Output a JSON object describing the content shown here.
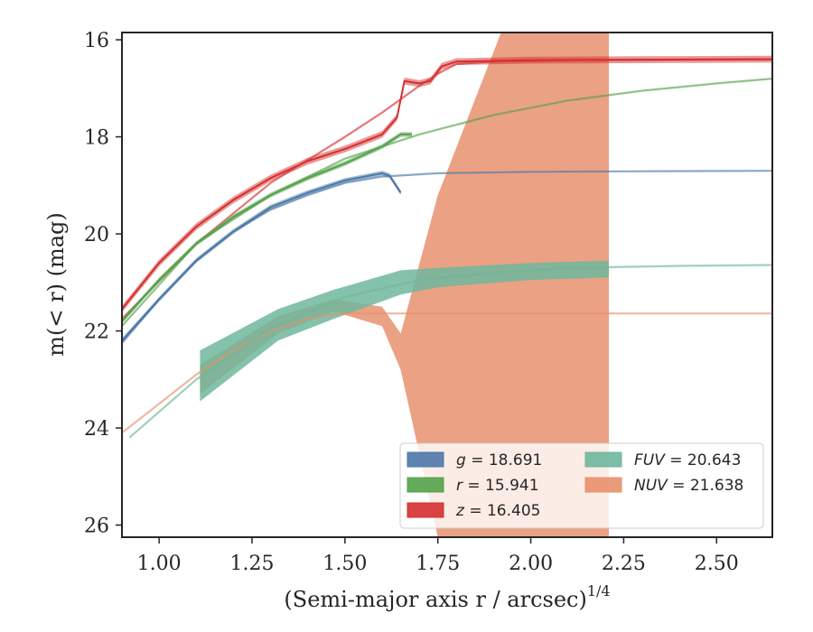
{
  "chart_data": {
    "type": "line",
    "title": "",
    "xlabel": "(Semi-major axis r / arcsec)",
    "xlabel_superscript": "1/4",
    "ylabel": "m(< r) (mag)",
    "xlim": [
      0.9,
      2.65
    ],
    "ylim": [
      26.25,
      15.85
    ],
    "y_inverted": true,
    "grid": false,
    "legend_position": "lower-right",
    "x_ticks": [
      "1.00",
      "1.25",
      "1.50",
      "1.75",
      "2.00",
      "2.25",
      "2.50"
    ],
    "x_tick_values": [
      1.0,
      1.25,
      1.5,
      1.75,
      2.0,
      2.25,
      2.5
    ],
    "y_ticks": [
      "16",
      "18",
      "20",
      "22",
      "24",
      "26"
    ],
    "y_tick_values": [
      16,
      18,
      20,
      22,
      24,
      26
    ],
    "legend": [
      {
        "band": "g",
        "value": "18.691",
        "color": "#4c78a8"
      },
      {
        "band": "r",
        "value": "15.941",
        "color": "#54a24b"
      },
      {
        "band": "z",
        "value": "16.405",
        "color": "#d62f2f"
      },
      {
        "band": "FUV",
        "value": "20.643",
        "color": "#6fb79c"
      },
      {
        "band": "NUV",
        "value": "21.638",
        "color": "#e8906d"
      }
    ],
    "series": [
      {
        "name": "g",
        "color": "#4c78a8",
        "kind": "profile",
        "band_width": 0.05,
        "x": [
          0.9,
          1.0,
          1.1,
          1.2,
          1.3,
          1.4,
          1.5,
          1.6,
          1.62,
          1.65
        ],
        "y": [
          22.2,
          21.35,
          20.55,
          19.95,
          19.45,
          19.15,
          18.9,
          18.75,
          18.8,
          19.15
        ]
      },
      {
        "name": "g model",
        "color": "#4c78a8",
        "kind": "model",
        "x": [
          0.9,
          1.0,
          1.1,
          1.2,
          1.3,
          1.4,
          1.5,
          1.6,
          1.75,
          2.0,
          2.3,
          2.65
        ],
        "y": [
          22.25,
          21.35,
          20.55,
          19.95,
          19.5,
          19.2,
          18.95,
          18.82,
          18.75,
          18.72,
          18.71,
          18.7
        ]
      },
      {
        "name": "r",
        "color": "#54a24b",
        "kind": "profile",
        "band_width": 0.05,
        "x": [
          0.9,
          1.0,
          1.1,
          1.2,
          1.3,
          1.4,
          1.5,
          1.6,
          1.65,
          1.68
        ],
        "y": [
          21.8,
          20.95,
          20.2,
          19.65,
          19.2,
          18.85,
          18.55,
          18.2,
          17.95,
          17.95
        ]
      },
      {
        "name": "r model",
        "color": "#54a24b",
        "kind": "model",
        "x": [
          0.9,
          1.1,
          1.3,
          1.5,
          1.7,
          1.9,
          2.1,
          2.3,
          2.5,
          2.65
        ],
        "y": [
          21.9,
          20.2,
          19.2,
          18.45,
          17.95,
          17.55,
          17.25,
          17.05,
          16.9,
          16.8
        ]
      },
      {
        "name": "z",
        "color": "#d62f2f",
        "kind": "profile",
        "band_width": 0.07,
        "x": [
          0.9,
          1.0,
          1.1,
          1.2,
          1.3,
          1.4,
          1.5,
          1.6,
          1.64,
          1.66,
          1.7,
          1.73,
          1.76,
          1.8,
          2.0,
          2.3,
          2.65
        ],
        "y": [
          21.55,
          20.6,
          19.85,
          19.3,
          18.85,
          18.5,
          18.25,
          17.95,
          17.6,
          16.85,
          16.9,
          16.85,
          16.55,
          16.45,
          16.42,
          16.41,
          16.4
        ]
      },
      {
        "name": "z model",
        "color": "#d62f2f",
        "kind": "model",
        "x": [
          0.9,
          1.1,
          1.3,
          1.5,
          1.6,
          1.7,
          1.75,
          1.8,
          1.9,
          2.1,
          2.4,
          2.65
        ],
        "y": [
          21.75,
          20.2,
          18.95,
          18.0,
          17.5,
          16.95,
          16.7,
          16.5,
          16.45,
          16.42,
          16.41,
          16.4
        ]
      },
      {
        "name": "FUV",
        "color": "#6fb79c",
        "kind": "band",
        "x": [
          1.11,
          1.32,
          1.47,
          1.65,
          1.75,
          2.0,
          2.21
        ],
        "y_lo": [
          23.45,
          22.2,
          21.75,
          21.25,
          21.1,
          20.95,
          20.9
        ],
        "y_hi": [
          22.4,
          21.55,
          21.15,
          20.75,
          20.7,
          20.6,
          20.55
        ]
      },
      {
        "name": "FUV model",
        "color": "#6fb79c",
        "kind": "model",
        "x": [
          0.92,
          1.1,
          1.3,
          1.5,
          1.7,
          1.9,
          2.1,
          2.4,
          2.65
        ],
        "y": [
          24.2,
          23.0,
          21.95,
          21.3,
          20.95,
          20.8,
          20.7,
          20.66,
          20.64
        ]
      },
      {
        "name": "NUV",
        "color": "#e8906d",
        "kind": "band",
        "x": [
          1.11,
          1.32,
          1.47,
          1.6,
          1.65,
          1.75,
          1.92,
          2.21
        ],
        "y_lo": [
          23.3,
          22.05,
          21.6,
          21.9,
          22.8,
          26.25,
          26.25,
          26.25
        ],
        "y_hi": [
          22.7,
          21.7,
          21.35,
          21.5,
          22.05,
          19.2,
          15.85,
          15.85
        ]
      },
      {
        "name": "NUV model",
        "color": "#e8906d",
        "kind": "model",
        "x": [
          0.9,
          1.0,
          1.1,
          1.2,
          1.3,
          1.4,
          1.48,
          1.55,
          1.6,
          2.0,
          2.65
        ],
        "y": [
          24.1,
          23.5,
          22.9,
          22.4,
          22.0,
          21.75,
          21.65,
          21.64,
          21.64,
          21.64,
          21.64
        ]
      }
    ]
  }
}
